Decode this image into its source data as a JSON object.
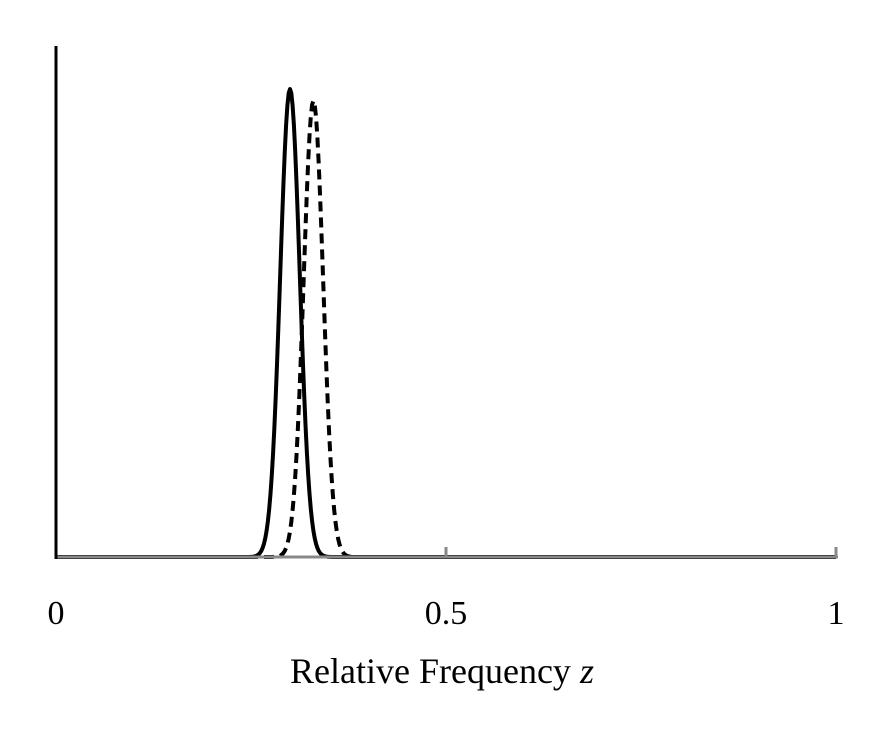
{
  "chart_data": {
    "type": "line",
    "title": "",
    "xlabel_text": "Relative Frequency ",
    "xlabel_var": "z",
    "ylabel": "",
    "xlim": [
      0,
      1
    ],
    "ylim": [
      0,
      1
    ],
    "x_ticks": [
      0,
      0.5,
      1
    ],
    "x_tick_labels": [
      "0",
      "0.5",
      "1"
    ],
    "grid": false,
    "legend": "none",
    "series": [
      {
        "style": "solid",
        "color": "#000000",
        "mean": 0.3,
        "sd": 0.0125,
        "peak": 1.0
      },
      {
        "style": "dashed",
        "color": "#000000",
        "mean": 0.33,
        "sd": 0.0125,
        "peak": 0.975
      }
    ],
    "axis_color": "#000000",
    "x_axis_color": "#888888"
  }
}
